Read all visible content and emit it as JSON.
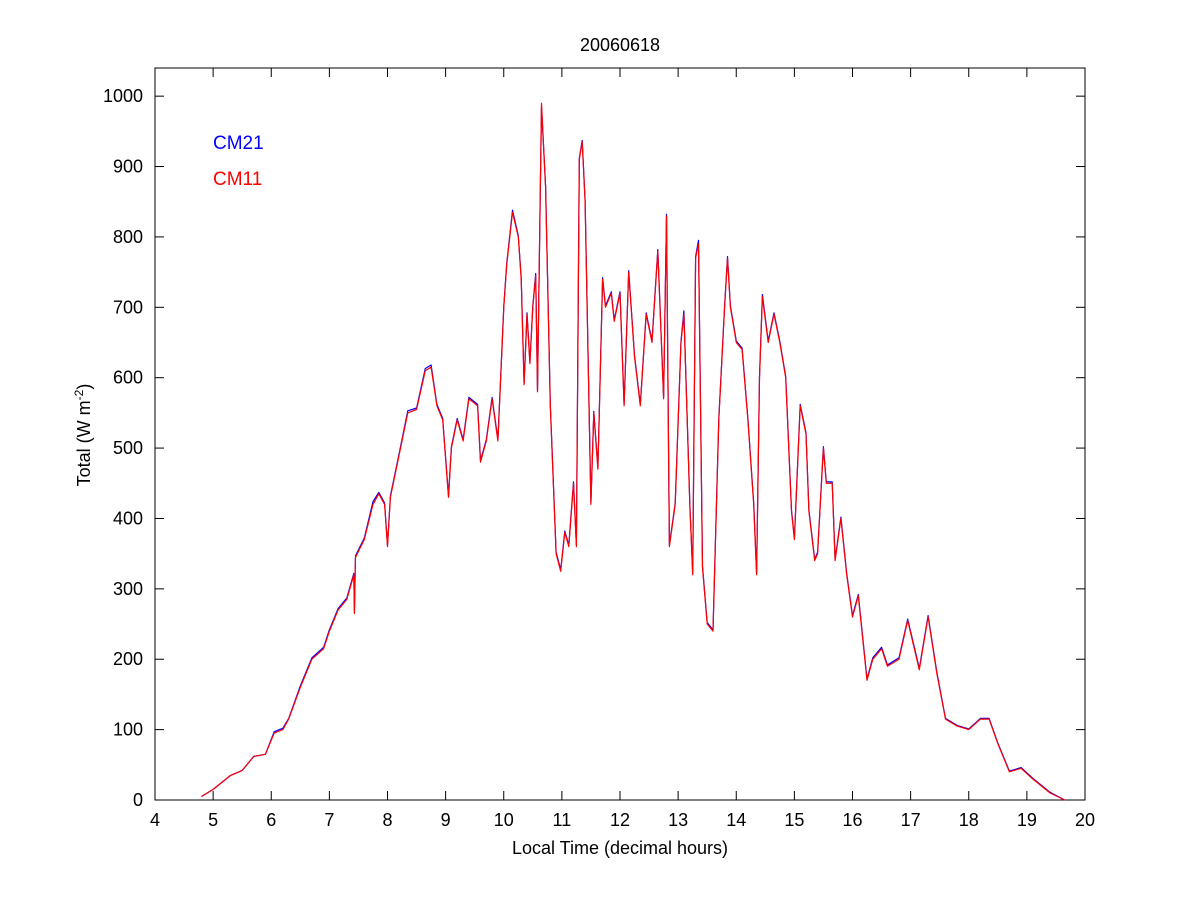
{
  "chart_data": {
    "type": "line",
    "title": "20060618",
    "xlabel": "Local Time (decimal hours)",
    "ylabel_main": "Total (W m",
    "ylabel_sup": "-2",
    "ylabel_close": ")",
    "xlim": [
      4,
      20
    ],
    "ylim": [
      0,
      1040
    ],
    "xticks": [
      4,
      5,
      6,
      7,
      8,
      9,
      10,
      11,
      12,
      13,
      14,
      15,
      16,
      17,
      18,
      19,
      20
    ],
    "yticks": [
      0,
      100,
      200,
      300,
      400,
      500,
      600,
      700,
      800,
      900,
      1000
    ],
    "grid": false,
    "legend_placement": "top-left",
    "x": [
      4.8,
      5.0,
      5.3,
      5.5,
      5.7,
      5.9,
      6.05,
      6.2,
      6.3,
      6.5,
      6.7,
      6.9,
      7.0,
      7.15,
      7.3,
      7.42,
      7.43,
      7.45,
      7.6,
      7.75,
      7.85,
      7.95,
      8.0,
      8.05,
      8.2,
      8.35,
      8.5,
      8.65,
      8.75,
      8.85,
      8.95,
      9.05,
      9.1,
      9.2,
      9.3,
      9.4,
      9.55,
      9.6,
      9.7,
      9.8,
      9.9,
      10.0,
      10.05,
      10.15,
      10.25,
      10.3,
      10.35,
      10.4,
      10.45,
      10.5,
      10.55,
      10.58,
      10.65,
      10.72,
      10.8,
      10.9,
      10.98,
      11.05,
      11.12,
      11.2,
      11.25,
      11.3,
      11.35,
      11.4,
      11.5,
      11.55,
      11.62,
      11.7,
      11.75,
      11.85,
      11.9,
      12.0,
      12.07,
      12.15,
      12.25,
      12.35,
      12.45,
      12.55,
      12.65,
      12.75,
      12.8,
      12.85,
      12.95,
      13.05,
      13.1,
      13.2,
      13.25,
      13.3,
      13.35,
      13.42,
      13.5,
      13.6,
      13.7,
      13.8,
      13.85,
      13.9,
      14.0,
      14.1,
      14.2,
      14.3,
      14.35,
      14.4,
      14.45,
      14.55,
      14.65,
      14.75,
      14.85,
      14.95,
      15.0,
      15.1,
      15.2,
      15.25,
      15.35,
      15.4,
      15.5,
      15.55,
      15.65,
      15.7,
      15.8,
      15.9,
      16.0,
      16.1,
      16.25,
      16.35,
      16.5,
      16.6,
      16.8,
      16.95,
      17.05,
      17.15,
      17.3,
      17.45,
      17.6,
      17.8,
      18.0,
      18.2,
      18.35,
      18.5,
      18.7,
      18.9,
      19.1,
      19.4,
      19.65
    ],
    "series": [
      {
        "name": "CM21",
        "color": "#0000ff",
        "values": [
          5,
          15,
          35,
          42,
          62,
          65,
          97,
          102,
          116,
          162,
          202,
          217,
          242,
          272,
          287,
          322,
          268,
          347,
          372,
          424,
          437,
          422,
          362,
          432,
          492,
          553,
          557,
          613,
          618,
          562,
          542,
          432,
          502,
          542,
          512,
          572,
          562,
          482,
          512,
          572,
          512,
          702,
          762,
          838,
          802,
          742,
          592,
          692,
          622,
          702,
          748,
          582,
          985,
          872,
          562,
          352,
          327,
          382,
          362,
          452,
          362,
          912,
          937,
          852,
          422,
          552,
          472,
          742,
          702,
          722,
          682,
          722,
          562,
          752,
          632,
          562,
          692,
          652,
          782,
          572,
          832,
          362,
          422,
          652,
          695,
          422,
          322,
          772,
          795,
          332,
          252,
          242,
          542,
          702,
          772,
          702,
          652,
          642,
          542,
          422,
          322,
          602,
          718,
          652,
          692,
          652,
          602,
          412,
          372,
          562,
          522,
          412,
          342,
          352,
          502,
          452,
          452,
          342,
          402,
          322,
          262,
          292,
          172,
          202,
          217,
          192,
          202,
          257,
          222,
          187,
          262,
          182,
          116,
          106,
          101,
          116,
          116,
          81,
          41,
          46,
          31,
          11,
          0
        ]
      },
      {
        "name": "CM11",
        "color": "#ff0000",
        "values": [
          5,
          15,
          35,
          42,
          62,
          65,
          95,
          100,
          115,
          160,
          200,
          215,
          240,
          270,
          285,
          320,
          265,
          345,
          370,
          420,
          435,
          420,
          360,
          430,
          490,
          550,
          555,
          610,
          615,
          560,
          540,
          430,
          500,
          540,
          510,
          570,
          560,
          480,
          510,
          570,
          510,
          700,
          760,
          835,
          800,
          740,
          590,
          690,
          620,
          700,
          745,
          580,
          990,
          870,
          560,
          350,
          325,
          380,
          360,
          450,
          360,
          910,
          935,
          850,
          420,
          550,
          470,
          740,
          700,
          720,
          680,
          720,
          560,
          750,
          630,
          560,
          690,
          650,
          780,
          570,
          830,
          360,
          420,
          650,
          690,
          420,
          320,
          770,
          790,
          330,
          250,
          240,
          540,
          700,
          770,
          700,
          650,
          640,
          540,
          420,
          320,
          600,
          715,
          650,
          690,
          650,
          600,
          410,
          370,
          560,
          520,
          410,
          340,
          350,
          500,
          450,
          450,
          340,
          400,
          320,
          260,
          290,
          170,
          200,
          215,
          190,
          200,
          255,
          220,
          185,
          260,
          180,
          115,
          105,
          100,
          115,
          115,
          80,
          40,
          45,
          30,
          10,
          0
        ]
      }
    ]
  }
}
